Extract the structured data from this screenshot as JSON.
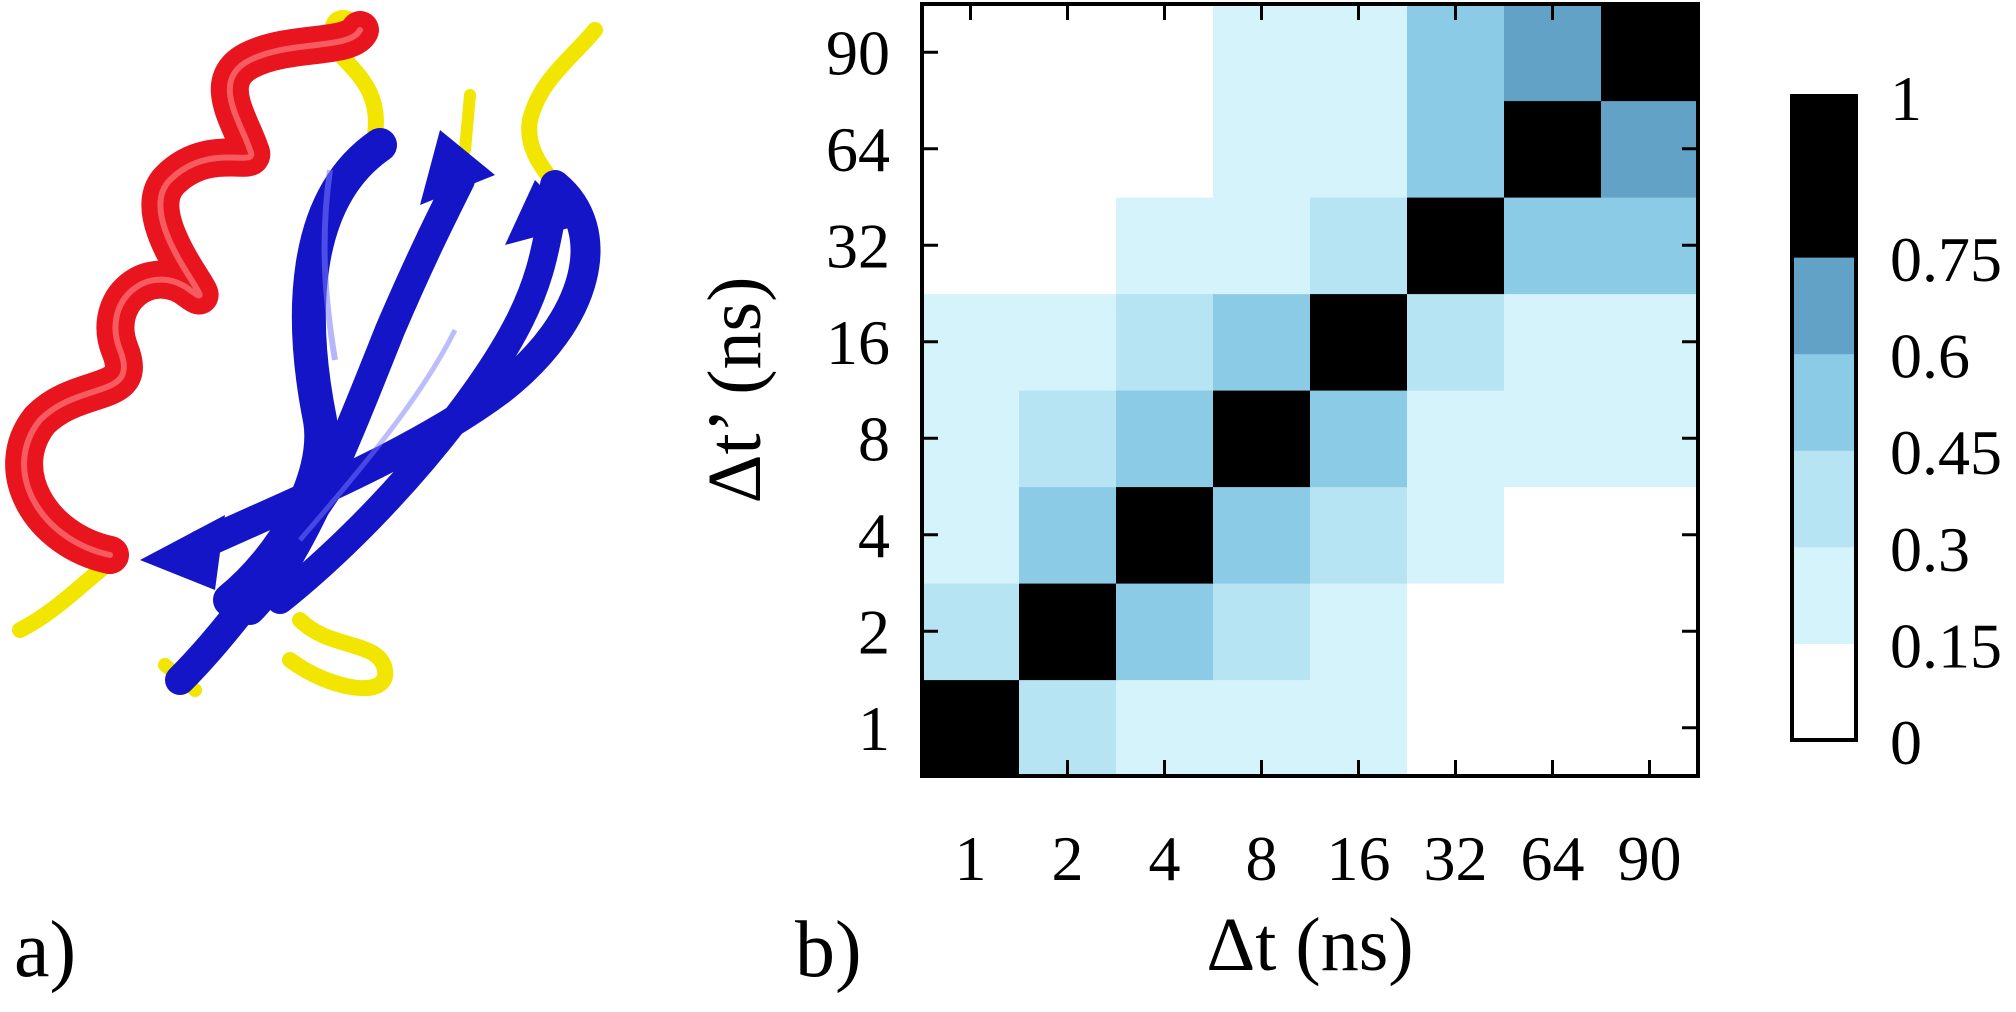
{
  "panel_labels": {
    "a": "a)",
    "b": "b)"
  },
  "protein_image": {
    "description_icon": "protein-ribbon-icon",
    "colors": {
      "helix": "#e8141e",
      "sheet": "#1515c8",
      "coil": "#f2e600"
    }
  },
  "chart_data": {
    "type": "heatmap",
    "xlabel": "Δt (ns)",
    "ylabel": "Δt’ (ns)",
    "x_categories": [
      "1",
      "2",
      "4",
      "8",
      "16",
      "32",
      "64",
      "90"
    ],
    "y_categories": [
      "1",
      "2",
      "4",
      "8",
      "16",
      "32",
      "64",
      "90"
    ],
    "grid": false,
    "legend_placement": "right",
    "matrix": [
      [
        1.0,
        0.3,
        0.2,
        0.2,
        0.2,
        0.0,
        0.0,
        0.0
      ],
      [
        0.3,
        1.0,
        0.45,
        0.3,
        0.2,
        0.0,
        0.0,
        0.0
      ],
      [
        0.2,
        0.45,
        1.0,
        0.45,
        0.3,
        0.2,
        0.0,
        0.0
      ],
      [
        0.2,
        0.3,
        0.45,
        1.0,
        0.45,
        0.2,
        0.2,
        0.2
      ],
      [
        0.2,
        0.2,
        0.3,
        0.45,
        1.0,
        0.3,
        0.2,
        0.2
      ],
      [
        0.0,
        0.0,
        0.2,
        0.2,
        0.3,
        1.0,
        0.45,
        0.45
      ],
      [
        0.0,
        0.0,
        0.0,
        0.2,
        0.2,
        0.45,
        1.0,
        0.6
      ],
      [
        0.0,
        0.0,
        0.0,
        0.2,
        0.2,
        0.45,
        0.6,
        1.0
      ]
    ],
    "colorbar": {
      "ticks": [
        "0",
        "0.15",
        "0.3",
        "0.45",
        "0.6",
        "0.75",
        "1"
      ],
      "tick_values": [
        0,
        0.15,
        0.3,
        0.45,
        0.6,
        0.75,
        1
      ],
      "bands": [
        {
          "from": 0.0,
          "to": 0.15,
          "color": "#ffffff"
        },
        {
          "from": 0.15,
          "to": 0.3,
          "color": "#d5f3fb"
        },
        {
          "from": 0.3,
          "to": 0.45,
          "color": "#b6e4f2"
        },
        {
          "from": 0.45,
          "to": 0.6,
          "color": "#8ccbe5"
        },
        {
          "from": 0.6,
          "to": 0.75,
          "color": "#62a2c6"
        },
        {
          "from": 0.75,
          "to": 1.0,
          "color": "#000000"
        }
      ]
    }
  }
}
